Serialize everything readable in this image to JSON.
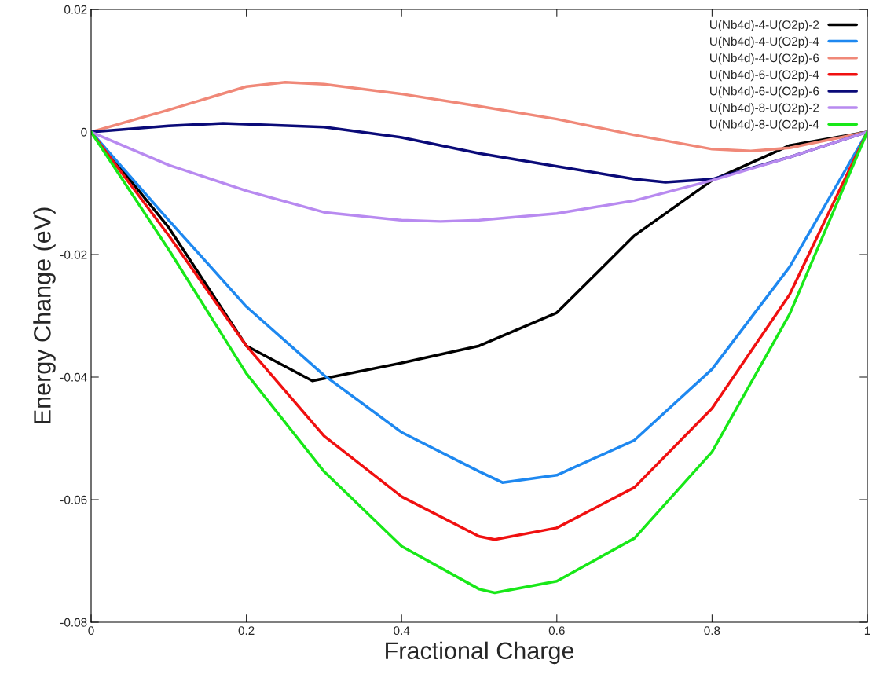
{
  "chart_data": {
    "type": "line",
    "xlabel": "Fractional Charge",
    "ylabel": "Energy Change (eV)",
    "xlim": [
      0,
      1
    ],
    "ylim": [
      -0.08,
      0.02
    ],
    "xticks": [
      0,
      0.2,
      0.4,
      0.6,
      0.8,
      1
    ],
    "yticks": [
      -0.08,
      -0.06,
      -0.04,
      -0.02,
      0,
      0.02
    ],
    "grid": false,
    "legend": "top right",
    "marker": "none",
    "line_style": "solid",
    "series": [
      {
        "name": "U(Nb4d)-4-U(O2p)-2",
        "color": "#000000",
        "x": [
          0,
          0.1,
          0.2,
          0.285,
          0.4,
          0.5,
          0.6,
          0.7,
          0.8,
          0.9,
          1
        ],
        "values": [
          0,
          -0.0156,
          -0.0349,
          -0.0406,
          -0.0377,
          -0.0349,
          -0.0295,
          -0.0169,
          -0.0079,
          -0.0022,
          0
        ]
      },
      {
        "name": "U(Nb4d)-4-U(O2p)-4",
        "color": "#1e88f0",
        "x": [
          0,
          0.1,
          0.2,
          0.3,
          0.4,
          0.5,
          0.53,
          0.6,
          0.7,
          0.8,
          0.9,
          1
        ],
        "values": [
          0,
          -0.0144,
          -0.0285,
          -0.0397,
          -0.049,
          -0.0554,
          -0.0572,
          -0.056,
          -0.0503,
          -0.0387,
          -0.022,
          0
        ]
      },
      {
        "name": "U(Nb4d)-4-U(O2p)-6",
        "color": "#f08878",
        "x": [
          0,
          0.1,
          0.2,
          0.25,
          0.3,
          0.4,
          0.5,
          0.6,
          0.7,
          0.8,
          0.85,
          0.9,
          1
        ],
        "values": [
          0,
          0.0036,
          0.0074,
          0.0081,
          0.0078,
          0.0062,
          0.0042,
          0.0021,
          -0.0005,
          -0.0028,
          -0.0031,
          -0.0026,
          0
        ]
      },
      {
        "name": "U(Nb4d)-6-U(O2p)-4",
        "color": "#f01010",
        "x": [
          0,
          0.1,
          0.2,
          0.3,
          0.4,
          0.5,
          0.52,
          0.6,
          0.7,
          0.8,
          0.9,
          1
        ],
        "values": [
          0,
          -0.0169,
          -0.0349,
          -0.0496,
          -0.0595,
          -0.066,
          -0.0665,
          -0.0646,
          -0.058,
          -0.0451,
          -0.0265,
          0
        ]
      },
      {
        "name": "U(Nb4d)-6-U(O2p)-6",
        "color": "#0a0a78",
        "x": [
          0,
          0.1,
          0.17,
          0.3,
          0.4,
          0.5,
          0.6,
          0.7,
          0.74,
          0.8,
          0.9,
          1
        ],
        "values": [
          0,
          0.001,
          0.0014,
          0.0008,
          -0.0009,
          -0.0035,
          -0.0056,
          -0.0077,
          -0.0082,
          -0.0077,
          -0.0041,
          0
        ]
      },
      {
        "name": "U(Nb4d)-8-U(O2p)-2",
        "color": "#b88af0",
        "x": [
          0,
          0.1,
          0.2,
          0.3,
          0.4,
          0.45,
          0.5,
          0.6,
          0.7,
          0.8,
          0.9,
          1
        ],
        "values": [
          0,
          -0.0054,
          -0.0096,
          -0.0131,
          -0.0144,
          -0.0146,
          -0.0144,
          -0.0133,
          -0.0112,
          -0.0079,
          -0.0041,
          0
        ]
      },
      {
        "name": "U(Nb4d)-8-U(O2p)-4",
        "color": "#18e818",
        "x": [
          0,
          0.1,
          0.2,
          0.3,
          0.4,
          0.5,
          0.52,
          0.6,
          0.7,
          0.8,
          0.9,
          1
        ],
        "values": [
          0,
          -0.0192,
          -0.0394,
          -0.0554,
          -0.0676,
          -0.0746,
          -0.0752,
          -0.0733,
          -0.0663,
          -0.0522,
          -0.0297,
          0
        ]
      }
    ]
  }
}
